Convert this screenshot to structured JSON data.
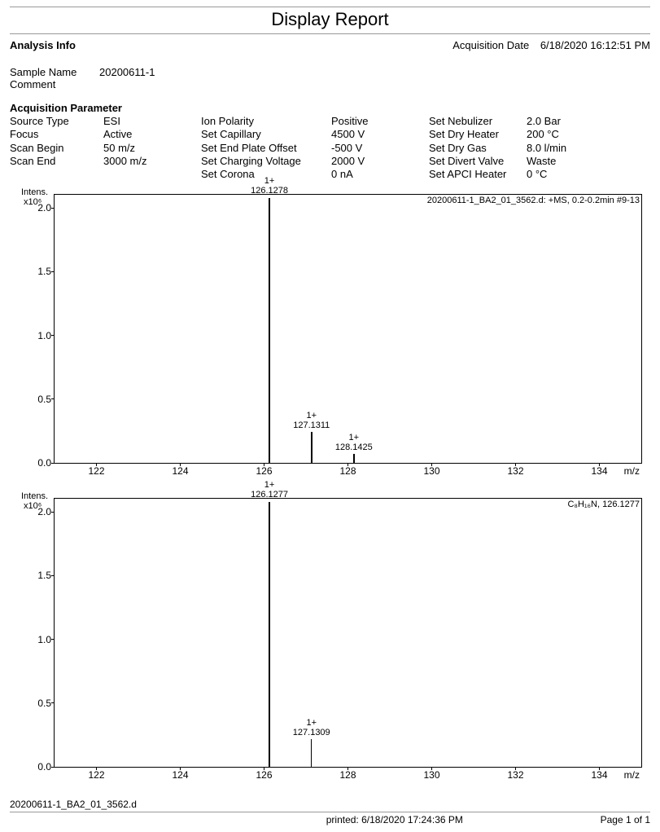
{
  "title": "Display Report",
  "analysis_info_label": "Analysis Info",
  "acquisition_date_label": "Acquisition Date",
  "acquisition_date": "6/18/2020 16:12:51 PM",
  "sample": {
    "name_label": "Sample Name",
    "name_value": "20200611-1",
    "comment_label": "Comment",
    "comment_value": ""
  },
  "params_heading": "Acquisition Parameter",
  "params": {
    "col1_labels": [
      "Source Type",
      "Focus",
      "Scan Begin",
      "Scan End"
    ],
    "col1_values": [
      "ESI",
      "Active",
      "50 m/z",
      "3000 m/z"
    ],
    "col2_labels": [
      "Ion Polarity",
      "Set Capillary",
      "Set End Plate Offset",
      "Set Charging Voltage",
      "Set Corona"
    ],
    "col2_values": [
      "Positive",
      "4500 V",
      "-500 V",
      "2000 V",
      "0 nA"
    ],
    "col3_labels": [
      "Set Nebulizer",
      "Set Dry Heater",
      "Set Dry Gas",
      "Set Divert Valve",
      "Set APCI Heater"
    ],
    "col3_values": [
      "2.0 Bar",
      "200 °C",
      "8.0 l/min",
      "Waste",
      "0 °C"
    ]
  },
  "chart1": {
    "ylabel_top": "Intens.",
    "yscale": "x10⁶",
    "corner_text": "20200611-1_BA2_01_3562.d: +MS, 0.2-0.2min #9-13",
    "y_ticks": [
      {
        "pos": 0,
        "label": "0.0"
      },
      {
        "pos": 0.238,
        "label": "0.5"
      },
      {
        "pos": 0.476,
        "label": "1.0"
      },
      {
        "pos": 0.714,
        "label": "1.5"
      },
      {
        "pos": 0.952,
        "label": "2.0"
      }
    ],
    "x_min": 121,
    "x_max": 135,
    "x_ticks": [
      122,
      124,
      126,
      128,
      130,
      132,
      134
    ],
    "x_unit": "m/z",
    "peaks": [
      {
        "mz": 126.1278,
        "rel_height": 0.99,
        "charge": "1+",
        "label": "126.1278"
      },
      {
        "mz": 127.1311,
        "rel_height": 0.115,
        "charge": "1+",
        "label": "127.1311"
      },
      {
        "mz": 128.1425,
        "rel_height": 0.035,
        "charge": "1+",
        "label": "128.1425"
      }
    ],
    "colors": {
      "peak": "#000000",
      "border": "#000000"
    }
  },
  "chart2": {
    "ylabel_top": "Intens.",
    "yscale": "x10⁶",
    "corner_text": "C₈H₁₆N, 126.1277",
    "y_ticks": [
      {
        "pos": 0,
        "label": "0.0"
      },
      {
        "pos": 0.238,
        "label": "0.5"
      },
      {
        "pos": 0.476,
        "label": "1.0"
      },
      {
        "pos": 0.714,
        "label": "1.5"
      },
      {
        "pos": 0.952,
        "label": "2.0"
      }
    ],
    "x_min": 121,
    "x_max": 135,
    "x_ticks": [
      122,
      124,
      126,
      128,
      130,
      132,
      134
    ],
    "x_unit": "m/z",
    "peaks": [
      {
        "mz": 126.1277,
        "rel_height": 0.99,
        "charge": "1+",
        "label": "126.1277"
      },
      {
        "mz": 127.1309,
        "rel_height": 0.105,
        "charge": "1+",
        "label": "127.1309"
      }
    ],
    "colors": {
      "peak": "#000000",
      "border": "#000000"
    }
  },
  "footer_file": "20200611-1_BA2_01_3562.d",
  "footer_printed_label": "printed:",
  "footer_printed": "6/18/2020 17:24:36 PM",
  "footer_page": "Page 1 of 1"
}
